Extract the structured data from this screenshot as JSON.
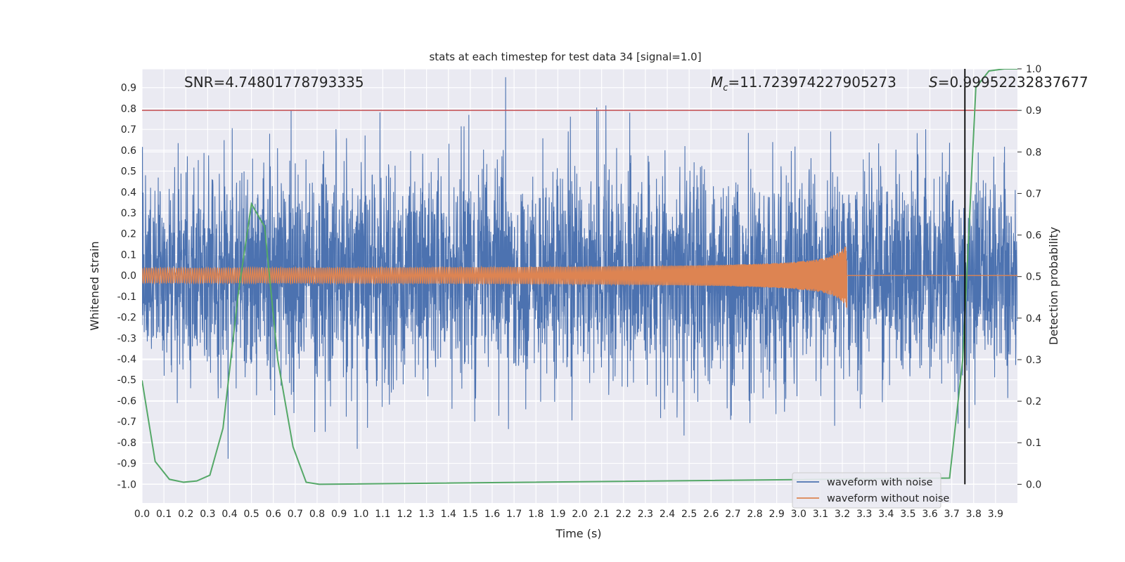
{
  "chart_data": {
    "type": "line",
    "title": "stats at each timestep for test data 34 [signal=1.0]",
    "xlabel": "Time (s)",
    "ylabel": "Whitened strain",
    "y2label": "Detection probability",
    "xlim": [
      0.0,
      4.0
    ],
    "ylim": [
      -1.09,
      0.99
    ],
    "y2lim": [
      -0.045,
      1.0
    ],
    "xticks": [
      "0.0",
      "0.1",
      "0.2",
      "0.3",
      "0.4",
      "0.5",
      "0.6",
      "0.7",
      "0.8",
      "0.9",
      "1.0",
      "1.1",
      "1.2",
      "1.3",
      "1.4",
      "1.5",
      "1.6",
      "1.7",
      "1.8",
      "1.9",
      "2.0",
      "2.1",
      "2.2",
      "2.3",
      "2.4",
      "2.5",
      "2.6",
      "2.7",
      "2.8",
      "2.9",
      "3.0",
      "3.1",
      "3.2",
      "3.3",
      "3.4",
      "3.5",
      "3.6",
      "3.7",
      "3.8",
      "3.9"
    ],
    "yticks": [
      "0.9",
      "0.8",
      "0.7",
      "0.6",
      "0.5",
      "0.4",
      "0.3",
      "0.2",
      "0.1",
      "0.0",
      "-0.1",
      "-0.2",
      "-0.3",
      "-0.4",
      "-0.5",
      "-0.6",
      "-0.7",
      "-0.8",
      "-0.9",
      "-1.0"
    ],
    "y2ticks": [
      "1.0",
      "0.9",
      "0.8",
      "0.7",
      "0.6",
      "0.5",
      "0.4",
      "0.3",
      "0.2",
      "0.1",
      "0.0"
    ],
    "grid": true,
    "legend_position": "bottom-right",
    "annotations": {
      "snr": "SNR=4.74801778793335",
      "mc_symbol": "M",
      "mc_sub": "c",
      "mc_value": "=11.723974227905273",
      "s_symbol": "S",
      "s_value": "=0.99952232837677"
    },
    "threshold_y2": 0.9,
    "detection_time": 3.76,
    "series": [
      {
        "name": "waveform with noise",
        "color": "#4c72b0",
        "note_visual": "dense noise, mostly within ±0.6, peaks near 0.89 and -1.0",
        "amplitude_envelope": 0.6
      },
      {
        "name": "waveform without noise",
        "color": "#dd8452",
        "chirp": {
          "t_merger": 3.22,
          "amp_start": 0.025,
          "amp_merger": 0.16,
          "f_start": 14
        }
      },
      {
        "name": "",
        "color": "#55a868",
        "axis": "y2",
        "x": [
          0.0,
          0.06,
          0.125,
          0.19,
          0.25,
          0.31,
          0.37,
          0.44,
          0.5,
          0.56,
          0.62,
          0.69,
          0.75,
          0.81,
          3.69,
          3.75,
          3.81,
          3.87,
          3.94,
          4.0
        ],
        "y": [
          0.25,
          0.055,
          0.012,
          0.005,
          0.008,
          0.022,
          0.135,
          0.46,
          0.675,
          0.62,
          0.3,
          0.09,
          0.005,
          0.0,
          0.015,
          0.3,
          0.955,
          0.995,
          1.0,
          1.0
        ]
      }
    ],
    "colors": {
      "plot_bg": "#eaeaf2",
      "grid": "#ffffff",
      "threshold": "#c44e52",
      "vline": "#000000"
    }
  }
}
